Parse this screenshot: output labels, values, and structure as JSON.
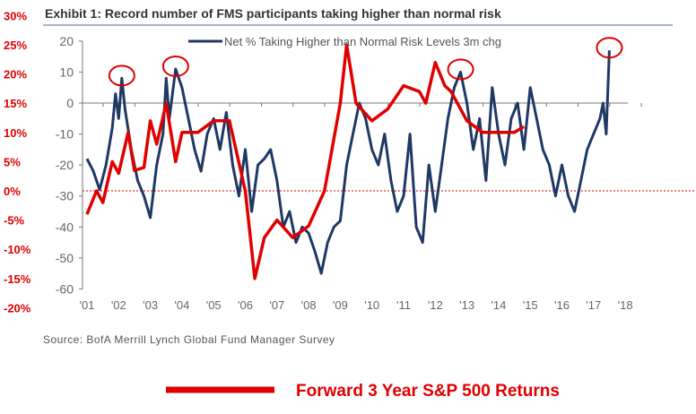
{
  "chart_data": {
    "type": "line",
    "title": "Exhibit 1: Record number of FMS participants taking higher than normal risk",
    "source": "Source: BofA Merrill Lynch Global Fund Manager Survey",
    "x_ticks": [
      "'01",
      "'02",
      "'03",
      "'04",
      "'05",
      "'06",
      "'07",
      "'08",
      "'09",
      "'10",
      "'11",
      "'12",
      "'13",
      "'14",
      "'15",
      "'16",
      "'17",
      "'18"
    ],
    "y_left": {
      "ticks": [
        20,
        10,
        0,
        -10,
        -20,
        -30,
        -40,
        -50,
        -60
      ],
      "ylim": [
        -60,
        20
      ]
    },
    "y_overlay": {
      "ticks": [
        "30%",
        "25%",
        "20%",
        "15%",
        "10%",
        "5%",
        "0%",
        "-5%",
        "-10%",
        "-15%",
        "-20%"
      ],
      "ylim": [
        -20,
        30
      ],
      "color": "#e00000"
    },
    "xlim": [
      2001,
      2018
    ],
    "series": [
      {
        "name": "Net % Taking Higher than Normal Risk Levels 3m chg",
        "color": "#1f3864",
        "axis": "left",
        "x": [
          2001.0,
          2001.2,
          2001.4,
          2001.6,
          2001.8,
          2001.9,
          2002.0,
          2002.1,
          2002.2,
          2002.4,
          2002.6,
          2002.8,
          2003.0,
          2003.2,
          2003.4,
          2003.5,
          2003.6,
          2003.8,
          2004.0,
          2004.2,
          2004.4,
          2004.6,
          2004.8,
          2005.0,
          2005.2,
          2005.4,
          2005.6,
          2005.8,
          2006.0,
          2006.2,
          2006.4,
          2006.6,
          2006.8,
          2007.0,
          2007.2,
          2007.4,
          2007.6,
          2007.8,
          2008.0,
          2008.2,
          2008.4,
          2008.6,
          2008.8,
          2009.0,
          2009.2,
          2009.4,
          2009.6,
          2009.8,
          2010.0,
          2010.2,
          2010.4,
          2010.6,
          2010.8,
          2011.0,
          2011.2,
          2011.4,
          2011.6,
          2011.8,
          2012.0,
          2012.2,
          2012.4,
          2012.6,
          2012.8,
          2013.0,
          2013.2,
          2013.4,
          2013.6,
          2013.8,
          2014.0,
          2014.2,
          2014.4,
          2014.6,
          2014.8,
          2015.0,
          2015.2,
          2015.4,
          2015.6,
          2015.8,
          2016.0,
          2016.2,
          2016.4,
          2016.6,
          2016.8,
          2017.0,
          2017.2,
          2017.3,
          2017.4,
          2017.5
        ],
        "y": [
          -18,
          -22,
          -28,
          -20,
          -8,
          3,
          -5,
          8,
          -2,
          -15,
          -25,
          -30,
          -37,
          -20,
          -10,
          8,
          -5,
          11,
          5,
          -5,
          -15,
          -22,
          -10,
          -5,
          -15,
          -3,
          -20,
          -30,
          -15,
          -35,
          -20,
          -18,
          -15,
          -25,
          -40,
          -35,
          -45,
          -40,
          -42,
          -48,
          -55,
          -45,
          -40,
          -38,
          -20,
          -10,
          0,
          -5,
          -15,
          -20,
          -10,
          -25,
          -35,
          -30,
          -10,
          -40,
          -45,
          -20,
          -35,
          -20,
          -5,
          5,
          10,
          0,
          -15,
          -5,
          -25,
          5,
          -10,
          -20,
          -5,
          0,
          -15,
          5,
          -5,
          -15,
          -20,
          -30,
          -20,
          -30,
          -35,
          -25,
          -15,
          -10,
          -5,
          0,
          -10,
          17
        ]
      },
      {
        "name": "Forward 3 Year S&P 500 Returns",
        "color": "#e00000",
        "axis": "overlay",
        "x": [
          2001.0,
          2001.3,
          2001.5,
          2001.8,
          2002.0,
          2002.3,
          2002.5,
          2002.8,
          2003.0,
          2003.2,
          2003.5,
          2003.8,
          2004.0,
          2004.5,
          2005.0,
          2005.5,
          2006.0,
          2006.3,
          2006.6,
          2007.0,
          2007.5,
          2008.0,
          2008.5,
          2009.0,
          2009.2,
          2009.5,
          2010.0,
          2010.5,
          2011.0,
          2011.5,
          2011.7,
          2012.0,
          2012.3,
          2012.5,
          2013.0,
          2013.5,
          2014.0,
          2014.5,
          2014.8
        ],
        "y": [
          -4,
          0,
          -2,
          5,
          3,
          10,
          3.5,
          4,
          12,
          8,
          15,
          5,
          10,
          10,
          12,
          12,
          0,
          -15,
          -8,
          -5,
          -8,
          -6,
          0,
          15,
          25,
          15,
          12,
          14,
          18,
          17,
          15,
          22,
          18,
          17,
          12,
          10,
          10,
          10,
          11
        ]
      }
    ],
    "annotations": [
      "red circles mark peaks of Net % series"
    ],
    "reference_line": {
      "axis": "overlay",
      "value": 0,
      "style": "dashed",
      "color": "#e00000"
    },
    "grid": false,
    "legend": "top-right"
  }
}
